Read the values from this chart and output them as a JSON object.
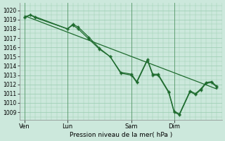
{
  "bg_color": "#cce8dc",
  "grid_color": "#99ccb0",
  "line_color": "#1e6b2e",
  "xlabel": "Pression niveau de la mer( hPa )",
  "ylim": [
    1008.2,
    1020.8
  ],
  "yticks": [
    1009,
    1010,
    1011,
    1012,
    1013,
    1014,
    1015,
    1016,
    1017,
    1018,
    1019,
    1020
  ],
  "xtick_labels": [
    "Ven",
    "Lun",
    "Sam",
    "Dim"
  ],
  "xtick_positions": [
    0,
    4,
    10,
    14
  ],
  "vline_positions": [
    0,
    4,
    10,
    14
  ],
  "xlim": [
    -0.5,
    18.5
  ],
  "x_jagged1": [
    0,
    0.5,
    1.0,
    4.0,
    4.5,
    5.0,
    6.0,
    7.0,
    8.0,
    9.0,
    10.0,
    10.5,
    11.5,
    12.0,
    12.5,
    13.5,
    14.0,
    14.5,
    15.5,
    16.0,
    16.5,
    17.0,
    17.5,
    18.0
  ],
  "y_jagged1": [
    1019.3,
    1019.5,
    1019.3,
    1018.0,
    1018.5,
    1018.2,
    1017.1,
    1015.9,
    1015.0,
    1013.3,
    1013.1,
    1012.3,
    1014.7,
    1013.1,
    1013.1,
    1011.2,
    1009.1,
    1008.8,
    1011.3,
    1011.0,
    1011.5,
    1012.2,
    1012.3,
    1011.8
  ],
  "x_jagged2": [
    0,
    0.5,
    1.0,
    4.0,
    4.5,
    5.0,
    6.0,
    7.0,
    8.0,
    9.0,
    10.0,
    10.5,
    11.5,
    12.0,
    12.5,
    13.5,
    14.0,
    14.5,
    15.5,
    16.0,
    16.5,
    17.0,
    17.5,
    18.0
  ],
  "y_jagged2": [
    1019.2,
    1019.5,
    1019.2,
    1018.0,
    1018.4,
    1018.0,
    1016.9,
    1015.8,
    1015.0,
    1013.2,
    1013.0,
    1012.2,
    1014.6,
    1013.0,
    1013.0,
    1011.1,
    1009.0,
    1008.7,
    1011.2,
    1010.9,
    1011.4,
    1012.1,
    1012.2,
    1011.7
  ],
  "trend_x": [
    0,
    18.0
  ],
  "trend_y": [
    1019.4,
    1011.5
  ]
}
